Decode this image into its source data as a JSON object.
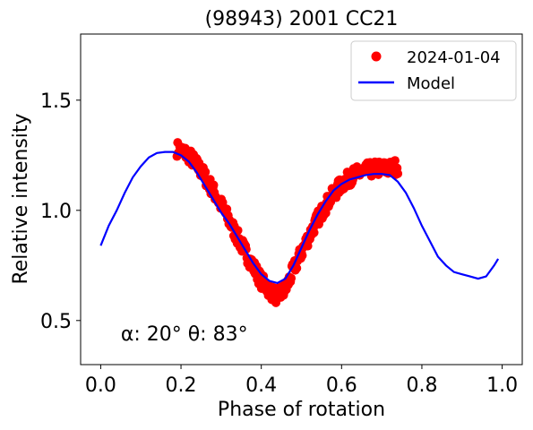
{
  "chart_data": {
    "type": "scatter",
    "title": "(98943) 2001 CC21",
    "xlabel": "Phase of rotation",
    "ylabel": "Relative intensity",
    "xlim": [
      -0.05,
      1.05
    ],
    "ylim": [
      0.3,
      1.8
    ],
    "xticks": [
      0.0,
      0.2,
      0.4,
      0.6,
      0.8,
      1.0
    ],
    "xtick_labels": [
      "0.0",
      "0.2",
      "0.4",
      "0.6",
      "0.8",
      "1.0"
    ],
    "yticks": [
      0.5,
      1.0,
      1.5
    ],
    "ytick_labels": [
      "0.5",
      "1.0",
      "1.5"
    ],
    "grid": false,
    "legend_position": "top-right",
    "annotation": "α: 20° θ: 83°",
    "annotation_position": [
      0.05,
      0.41
    ],
    "observations": {
      "name": "2024-01-04",
      "color": "#ff0000",
      "anchors": {
        "x": [
          0.19,
          0.22,
          0.25,
          0.28,
          0.31,
          0.34,
          0.37,
          0.4,
          0.43,
          0.44,
          0.46,
          0.48,
          0.51,
          0.54,
          0.57,
          0.6,
          0.63,
          0.66,
          0.69,
          0.72,
          0.74
        ],
        "y": [
          1.28,
          1.25,
          1.18,
          1.09,
          0.99,
          0.88,
          0.78,
          0.68,
          0.62,
          0.61,
          0.64,
          0.73,
          0.85,
          0.96,
          1.05,
          1.12,
          1.16,
          1.18,
          1.19,
          1.19,
          1.2
        ]
      }
    },
    "model": {
      "name": "Model",
      "color": "#0000ff",
      "x": [
        0.0,
        0.02,
        0.04,
        0.06,
        0.08,
        0.1,
        0.12,
        0.14,
        0.16,
        0.18,
        0.2,
        0.22,
        0.24,
        0.26,
        0.28,
        0.3,
        0.32,
        0.34,
        0.36,
        0.38,
        0.4,
        0.42,
        0.44,
        0.46,
        0.48,
        0.5,
        0.52,
        0.54,
        0.56,
        0.58,
        0.6,
        0.62,
        0.64,
        0.66,
        0.68,
        0.7,
        0.72,
        0.74,
        0.76,
        0.78,
        0.8,
        0.82,
        0.84,
        0.86,
        0.88,
        0.9,
        0.92,
        0.94,
        0.96,
        0.98,
        0.99
      ],
      "y": [
        0.84,
        0.93,
        1.0,
        1.08,
        1.15,
        1.2,
        1.24,
        1.26,
        1.265,
        1.265,
        1.25,
        1.22,
        1.17,
        1.11,
        1.05,
        0.99,
        0.94,
        0.88,
        0.82,
        0.76,
        0.71,
        0.68,
        0.67,
        0.69,
        0.75,
        0.83,
        0.91,
        0.98,
        1.04,
        1.09,
        1.12,
        1.14,
        1.15,
        1.16,
        1.165,
        1.165,
        1.16,
        1.13,
        1.08,
        1.01,
        0.93,
        0.86,
        0.79,
        0.75,
        0.72,
        0.71,
        0.7,
        0.69,
        0.7,
        0.75,
        0.78
      ]
    }
  }
}
